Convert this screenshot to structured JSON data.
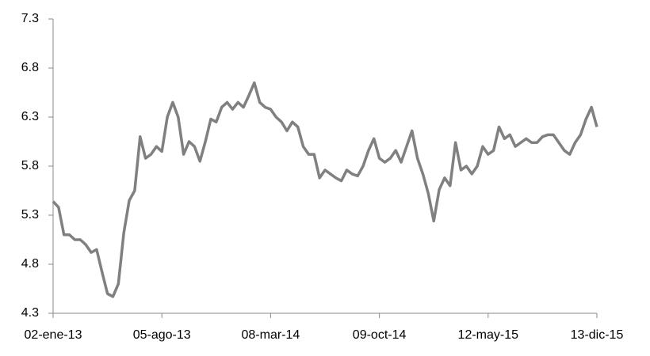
{
  "chart_data": {
    "type": "line",
    "categories": [
      "02-ene-13",
      null,
      null,
      null,
      null,
      null,
      null,
      null,
      null,
      null,
      null,
      null,
      null,
      null,
      null,
      null,
      null,
      null,
      null,
      null,
      "05-ago-13",
      null,
      null,
      null,
      null,
      null,
      null,
      null,
      null,
      null,
      null,
      null,
      null,
      null,
      null,
      null,
      null,
      null,
      null,
      null,
      "08-mar-14",
      null,
      null,
      null,
      null,
      null,
      null,
      null,
      null,
      null,
      null,
      null,
      null,
      null,
      null,
      null,
      null,
      null,
      null,
      null,
      "09-oct-14",
      null,
      null,
      null,
      null,
      null,
      null,
      null,
      null,
      null,
      null,
      null,
      null,
      null,
      null,
      null,
      null,
      null,
      null,
      null,
      "12-may-15",
      null,
      null,
      null,
      null,
      null,
      null,
      null,
      null,
      null,
      null,
      null,
      null,
      null,
      null,
      null,
      null,
      null,
      null,
      null,
      "13-dic-15"
    ],
    "series": [
      {
        "color": "#808080",
        "values": [
          5.44,
          5.38,
          5.1,
          5.1,
          5.05,
          5.05,
          5.0,
          4.92,
          4.95,
          4.72,
          4.5,
          4.47,
          4.6,
          5.12,
          5.45,
          5.55,
          6.1,
          5.88,
          5.92,
          6.0,
          5.95,
          6.3,
          6.45,
          6.3,
          5.92,
          6.05,
          6.0,
          5.85,
          6.05,
          6.28,
          6.25,
          6.4,
          6.45,
          6.38,
          6.45,
          6.4,
          6.52,
          6.65,
          6.45,
          6.4,
          6.38,
          6.3,
          6.25,
          6.16,
          6.25,
          6.2,
          6.0,
          5.92,
          5.92,
          5.68,
          5.76,
          5.72,
          5.68,
          5.65,
          5.76,
          5.72,
          5.7,
          5.8,
          5.96,
          6.08,
          5.88,
          5.84,
          5.88,
          5.96,
          5.84,
          6.0,
          6.16,
          5.88,
          5.72,
          5.52,
          5.24,
          5.56,
          5.68,
          5.6,
          6.04,
          5.76,
          5.8,
          5.72,
          5.8,
          6.0,
          5.92,
          5.96,
          6.2,
          6.08,
          6.12,
          6.0,
          6.04,
          6.08,
          6.04,
          6.04,
          6.1,
          6.12,
          6.12,
          6.04,
          5.96,
          5.92,
          6.04,
          6.12,
          6.28,
          6.4,
          6.2
        ]
      }
    ],
    "ylim": [
      4.3,
      7.3
    ],
    "yticks": [
      4.3,
      4.8,
      5.3,
      5.8,
      6.3,
      6.8,
      7.3
    ],
    "grid": false
  }
}
